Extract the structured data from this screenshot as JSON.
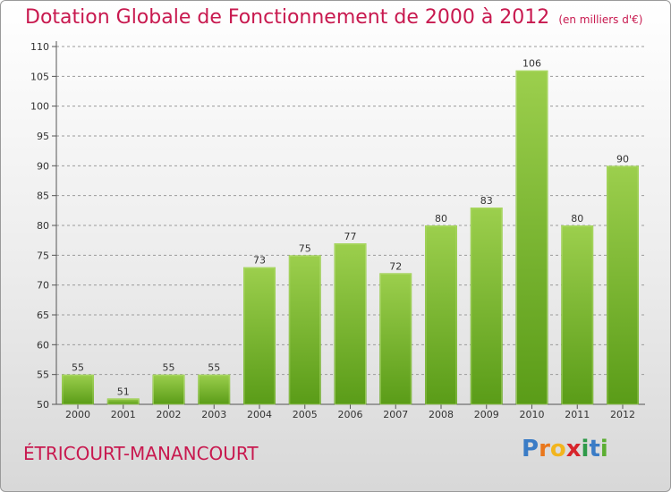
{
  "title": "Dotation Globale de Fonctionnement de 2000 à 2012",
  "unit": "(en milliers d'€)",
  "city": "ÉTRICOURT-MANANCOURT",
  "logo": [
    "P",
    "r",
    "o",
    "x",
    "i",
    "t",
    "i"
  ],
  "colors": {
    "accent": "#c8194f",
    "bar_light": "#9ccf4d",
    "bar_dark": "#5a9c18",
    "grid": "#9b9b9b"
  },
  "chart_data": {
    "type": "bar",
    "categories": [
      "2000",
      "2001",
      "2002",
      "2003",
      "2004",
      "2005",
      "2006",
      "2007",
      "2008",
      "2009",
      "2010",
      "2011",
      "2012"
    ],
    "values": [
      55,
      51,
      55,
      55,
      73,
      75,
      77,
      72,
      80,
      83,
      106,
      80,
      90
    ],
    "title": "Dotation Globale de Fonctionnement de 2000 à 2012",
    "ylim": [
      50,
      110
    ],
    "yticks": [
      50,
      55,
      60,
      65,
      70,
      75,
      80,
      85,
      90,
      95,
      100,
      105,
      110
    ],
    "grid": true,
    "legend": false
  }
}
